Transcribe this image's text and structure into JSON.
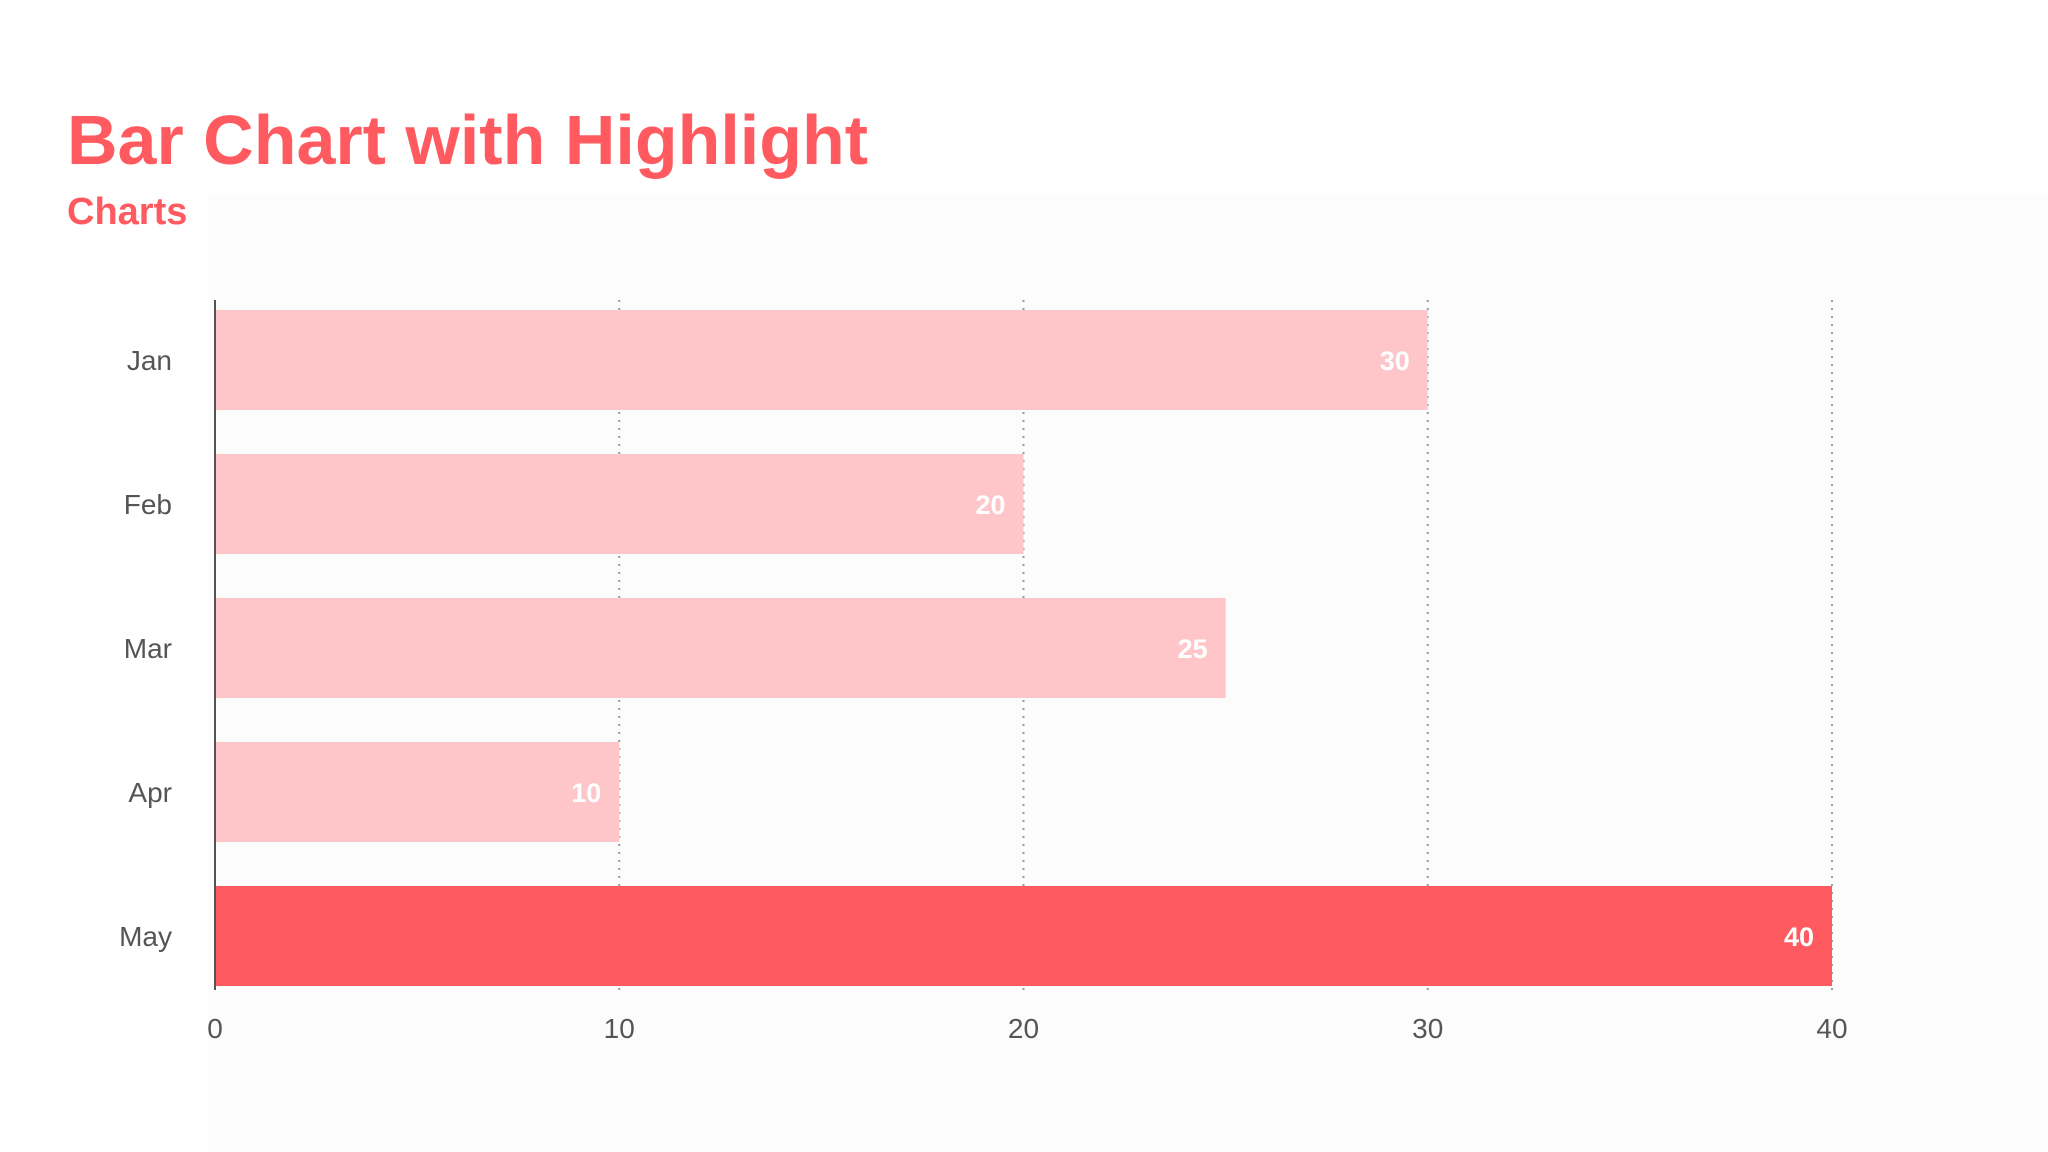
{
  "header": {
    "title": "Bar Chart with Highlight",
    "subtitle": "Charts"
  },
  "chart_data": {
    "type": "bar",
    "orientation": "horizontal",
    "title": "",
    "xlabel": "",
    "ylabel": "",
    "categories": [
      "Jan",
      "Feb",
      "Mar",
      "Apr",
      "May"
    ],
    "values": [
      30,
      20,
      25,
      10,
      40
    ],
    "xlim": [
      0,
      40
    ],
    "xticks": [
      0,
      10,
      20,
      30,
      40
    ],
    "highlight_category": "May",
    "grid": "vertical dotted",
    "colors": {
      "bar": "#ffc6ca",
      "highlight": "#ff5a5f",
      "title": "#ff5a5f",
      "axis": "#555555",
      "grid": "#999999",
      "value_label": "#ffffff"
    }
  }
}
